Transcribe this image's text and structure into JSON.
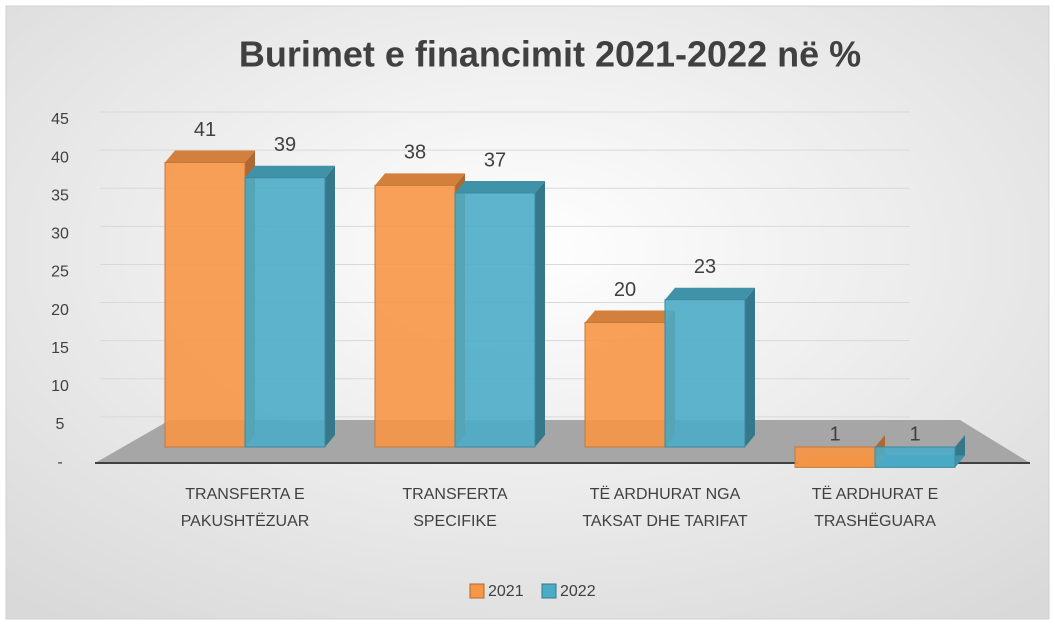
{
  "chart_data": {
    "type": "bar3d",
    "title": "Burimet e financimit 2021-2022 në %",
    "categories": [
      "TRANSFERTA E PAKUSHTËZUAR",
      "TRANSFERTA SPECIFIKE",
      "TË ARDHURAT NGA TAKSAT DHE TARIFAT",
      "TË ARDHURAT E TRASHËGUARA"
    ],
    "series": [
      {
        "name": "2021",
        "color": "#f79646",
        "values": [
          41,
          38,
          20,
          1
        ]
      },
      {
        "name": "2022",
        "color": "#4bacc6",
        "values": [
          39,
          37,
          23,
          1
        ]
      }
    ],
    "ylim": [
      0,
      45
    ],
    "yticks": [
      {
        "value": 0,
        "label": "-"
      },
      5,
      10,
      15,
      20,
      25,
      30,
      35,
      40,
      45
    ],
    "grid": true,
    "legend": "bottom"
  }
}
